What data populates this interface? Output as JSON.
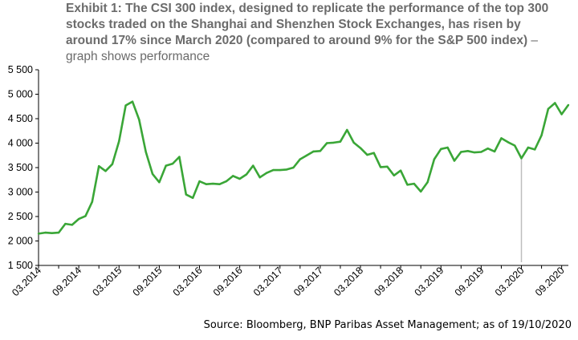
{
  "title": {
    "bold": "Exhibit 1: The CSI 300 index, designed to replicate the performance of the top 300 stocks traded on the Shanghai and Shenzhen Stock Exchanges, has risen by around 17% since March 2020 (compared to around 9% for the S&P 500 index)",
    "rest": " – graph shows performance"
  },
  "source": "Source: Bloomberg, BNP Paribas Asset Management; as of 19/10/2020",
  "colors": {
    "line": "#3aa637",
    "marker": "#bdbdbd",
    "axis": "#000000"
  },
  "chart_data": {
    "type": "line",
    "title": "Exhibit 1: The CSI 300 index, designed to replicate the performance of the top 300 stocks traded on the Shanghai and Shenzhen Stock Exchanges, has risen by around 17% since March 2020 (compared to around 9% for the S&P 500 index) – graph shows performance",
    "xlabel": "",
    "ylabel": "",
    "ylim": [
      1500,
      5500
    ],
    "yticks": [
      1500,
      2000,
      2500,
      3000,
      3500,
      4000,
      4500,
      5000,
      5500
    ],
    "ytick_labels": [
      "1 500",
      "2 000",
      "2 500",
      "3 000",
      "3 500",
      "4 000",
      "4 500",
      "5 000",
      "5 500"
    ],
    "xticks": [
      "03.2014",
      "09.2014",
      "03.2015",
      "09.2015",
      "03.2016",
      "09.2016",
      "03.2017",
      "09.2017",
      "03.2018",
      "09.2018",
      "03.2019",
      "09.2019",
      "03.2020",
      "09.2020"
    ],
    "xlim": [
      "2014-03",
      "2020-10"
    ],
    "grid": false,
    "legend": "none",
    "vertical_marker": "2020-03",
    "series": [
      {
        "x": [
          "2014-03",
          "2014-04",
          "2014-05",
          "2014-06",
          "2014-07",
          "2014-08",
          "2014-09",
          "2014-10",
          "2014-11",
          "2014-12",
          "2015-01",
          "2015-02",
          "2015-03",
          "2015-04",
          "2015-05",
          "2015-06",
          "2015-07",
          "2015-08",
          "2015-09",
          "2015-10",
          "2015-11",
          "2015-12",
          "2016-01",
          "2016-02",
          "2016-03",
          "2016-04",
          "2016-05",
          "2016-06",
          "2016-07",
          "2016-08",
          "2016-09",
          "2016-10",
          "2016-11",
          "2016-12",
          "2017-01",
          "2017-02",
          "2017-03",
          "2017-04",
          "2017-05",
          "2017-06",
          "2017-07",
          "2017-08",
          "2017-09",
          "2017-10",
          "2017-11",
          "2017-12",
          "2018-01",
          "2018-02",
          "2018-03",
          "2018-04",
          "2018-05",
          "2018-06",
          "2018-07",
          "2018-08",
          "2018-09",
          "2018-10",
          "2018-11",
          "2018-12",
          "2019-01",
          "2019-02",
          "2019-03",
          "2019-04",
          "2019-05",
          "2019-06",
          "2019-07",
          "2019-08",
          "2019-09",
          "2019-10",
          "2019-11",
          "2019-12",
          "2020-01",
          "2020-02",
          "2020-03",
          "2020-04",
          "2020-05",
          "2020-06",
          "2020-07",
          "2020-08",
          "2020-09",
          "2020-10"
        ],
        "values": [
          2150,
          2170,
          2160,
          2170,
          2350,
          2330,
          2450,
          2510,
          2800,
          3530,
          3430,
          3570,
          4040,
          4770,
          4850,
          4480,
          3820,
          3370,
          3200,
          3540,
          3580,
          3720,
          2950,
          2880,
          3220,
          3160,
          3170,
          3160,
          3220,
          3330,
          3270,
          3360,
          3540,
          3300,
          3390,
          3450,
          3450,
          3460,
          3500,
          3670,
          3750,
          3830,
          3840,
          4000,
          4010,
          4030,
          4270,
          4010,
          3900,
          3760,
          3800,
          3510,
          3520,
          3340,
          3440,
          3150,
          3170,
          3010,
          3200,
          3670,
          3880,
          3910,
          3640,
          3820,
          3840,
          3810,
          3820,
          3890,
          3830,
          4100,
          4020,
          3950,
          3690,
          3910,
          3870,
          4160,
          4700,
          4820,
          4590,
          4780
        ]
      }
    ]
  }
}
